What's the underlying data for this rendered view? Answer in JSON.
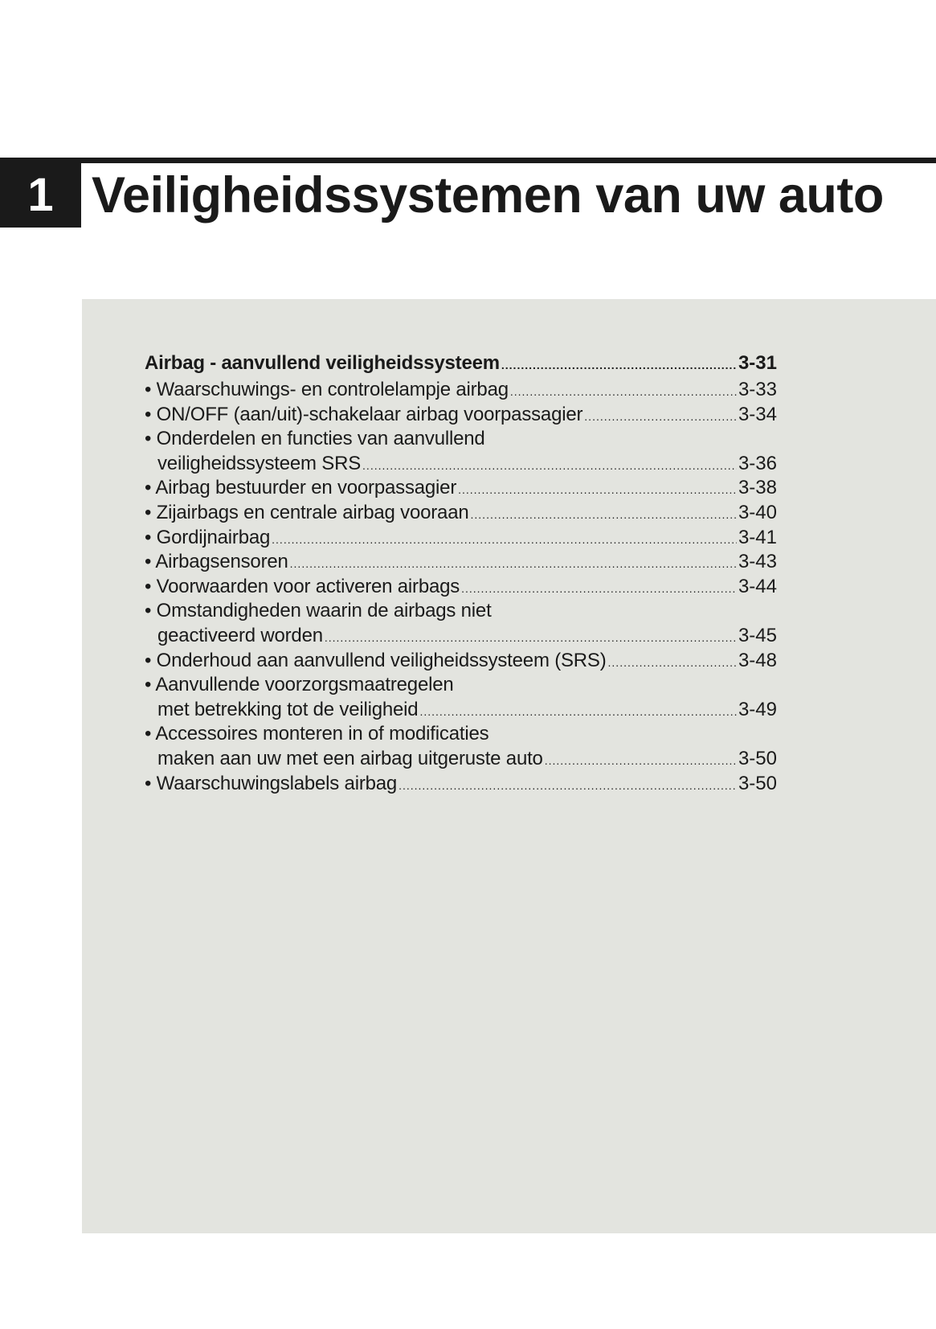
{
  "chapter": {
    "number": "1",
    "title": "Veiligheidssystemen van uw auto"
  },
  "toc": {
    "heading": {
      "label": "Airbag - aanvullend veiligheidssysteem",
      "page": "3-31"
    },
    "entries": [
      {
        "lines": [
          "• Waarschuwings- en controlelampje airbag"
        ],
        "page": "3-33"
      },
      {
        "lines": [
          "• ON/OFF (aan/uit)-schakelaar airbag voorpassagier"
        ],
        "page": "3-34"
      },
      {
        "lines": [
          "• Onderdelen en functies van aanvullend",
          "veiligheidssysteem SRS"
        ],
        "page": "3-36"
      },
      {
        "lines": [
          "• Airbag bestuurder en voorpassagier"
        ],
        "page": "3-38"
      },
      {
        "lines": [
          "• Zijairbags en centrale airbag vooraan"
        ],
        "page": "3-40"
      },
      {
        "lines": [
          "• Gordijnairbag"
        ],
        "page": "3-41"
      },
      {
        "lines": [
          "• Airbagsensoren"
        ],
        "page": "3-43"
      },
      {
        "lines": [
          "• Voorwaarden voor activeren airbags"
        ],
        "page": "3-44"
      },
      {
        "lines": [
          "• Omstandigheden waarin de airbags niet",
          "geactiveerd worden"
        ],
        "page": "3-45"
      },
      {
        "lines": [
          "• Onderhoud aan aanvullend veiligheidssysteem (SRS)"
        ],
        "page": "3-48"
      },
      {
        "lines": [
          "• Aanvullende voorzorgsmaatregelen",
          "met betrekking tot de veiligheid"
        ],
        "page": "3-49"
      },
      {
        "lines": [
          "• Accessoires monteren in of modificaties",
          "maken aan uw met een airbag uitgeruste auto"
        ],
        "page": "3-50"
      },
      {
        "lines": [
          "• Waarschuwingslabels airbag"
        ],
        "page": "3-50"
      }
    ]
  }
}
